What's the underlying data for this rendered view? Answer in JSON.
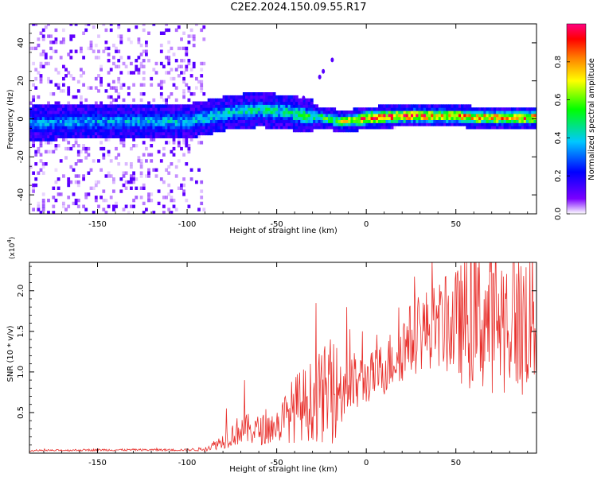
{
  "figure_title": "C2E2.2024.150.09.55.R17",
  "chart_data": [
    {
      "type": "heatmap",
      "title": "C2E2.2024.150.09.55.R17",
      "xlabel": "Height of straight line (km)",
      "ylabel": "Frequency (Hz)",
      "xlim": [
        -188,
        95
      ],
      "ylim": [
        -50,
        50
      ],
      "xticks": [
        -150,
        -100,
        -50,
        0,
        50
      ],
      "xtick_labels": [
        "-150",
        "-100",
        "-50",
        "0",
        "50"
      ],
      "yticks": [
        -40,
        -20,
        0,
        20,
        40
      ],
      "ytick_labels": [
        "-40",
        "-20",
        "0",
        "20",
        "40"
      ],
      "colorbar": {
        "label": "Normalized spectral amplitude",
        "range": [
          0,
          1
        ],
        "ticks": [
          0.0,
          0.2,
          0.4,
          0.6,
          0.8
        ],
        "tick_labels": [
          "0.0",
          "0.2",
          "0.4",
          "0.6",
          "0.8"
        ],
        "colormap": [
          "#ffffff",
          "#7a00ff",
          "#0000ff",
          "#00c8ff",
          "#00ff00",
          "#ffff00",
          "#ff8000",
          "#ff0000",
          "#ff0080"
        ]
      },
      "ridge_center_hz": [
        [
          -188,
          -3
        ],
        [
          -150,
          -2
        ],
        [
          -100,
          -2
        ],
        [
          -75,
          3
        ],
        [
          -60,
          4
        ],
        [
          -45,
          3
        ],
        [
          -35,
          1
        ],
        [
          -25,
          0
        ],
        [
          -15,
          -2
        ],
        [
          -5,
          -1
        ],
        [
          0,
          0
        ],
        [
          25,
          1
        ],
        [
          50,
          1
        ],
        [
          60,
          0
        ],
        [
          95,
          0
        ]
      ],
      "ridge_peak_amplitude": [
        [
          -188,
          0.35
        ],
        [
          -100,
          0.4
        ],
        [
          -50,
          0.45
        ],
        [
          -20,
          0.55
        ],
        [
          0,
          0.9
        ],
        [
          25,
          0.85
        ],
        [
          50,
          0.8
        ],
        [
          95,
          0.85
        ]
      ],
      "noise_region_km": [
        -188,
        -90
      ]
    },
    {
      "type": "line",
      "title": "",
      "xlabel": "Height of straight line (km)",
      "ylabel": "SNR (10 * v/v)",
      "yscale_label": "(x10",
      "yscale_exponent": "4",
      "yscale_suffix": ")",
      "xlim": [
        -188,
        95
      ],
      "ylim": [
        0,
        23500
      ],
      "xticks": [
        -150,
        -100,
        -50,
        0,
        50
      ],
      "xtick_labels": [
        "-150",
        "-100",
        "-50",
        "0",
        "50"
      ],
      "yticks": [
        5000,
        10000,
        15000,
        20000
      ],
      "ytick_labels": [
        "0.5",
        "1.0",
        "1.5",
        "2.0"
      ],
      "series": [
        {
          "name": "SNR",
          "color": "#e8302c",
          "envelope_x": [
            -188,
            -150,
            -100,
            -90,
            -80,
            -70,
            -60,
            -50,
            -40,
            -30,
            -20,
            -10,
            0,
            10,
            20,
            30,
            40,
            50,
            60,
            70,
            80,
            95
          ],
          "envelope_y": [
            300,
            400,
            400,
            500,
            1500,
            3000,
            2800,
            3300,
            5500,
            6500,
            7500,
            8200,
            9000,
            10500,
            13000,
            15000,
            15800,
            15800,
            16500,
            16300,
            16500,
            16800
          ],
          "noise_fraction": [
            0.3,
            0.3,
            0.3,
            0.5,
            0.6,
            0.6,
            0.6,
            0.6,
            0.7,
            0.7,
            0.8,
            0.5,
            0.3,
            0.3,
            0.3,
            0.3,
            0.3,
            0.4,
            0.5,
            0.5,
            0.5,
            0.5
          ],
          "spikes": [
            [
              -117,
              600
            ],
            [
              -78,
              5500
            ],
            [
              -68,
              9000
            ],
            [
              -28,
              18500
            ],
            [
              -20,
              14000
            ],
            [
              -11,
              18000
            ],
            [
              -2,
              15000
            ],
            [
              60,
              23500
            ],
            [
              78,
              19000
            ],
            [
              85,
              23500
            ],
            [
              87,
              7200
            ]
          ]
        }
      ]
    }
  ]
}
